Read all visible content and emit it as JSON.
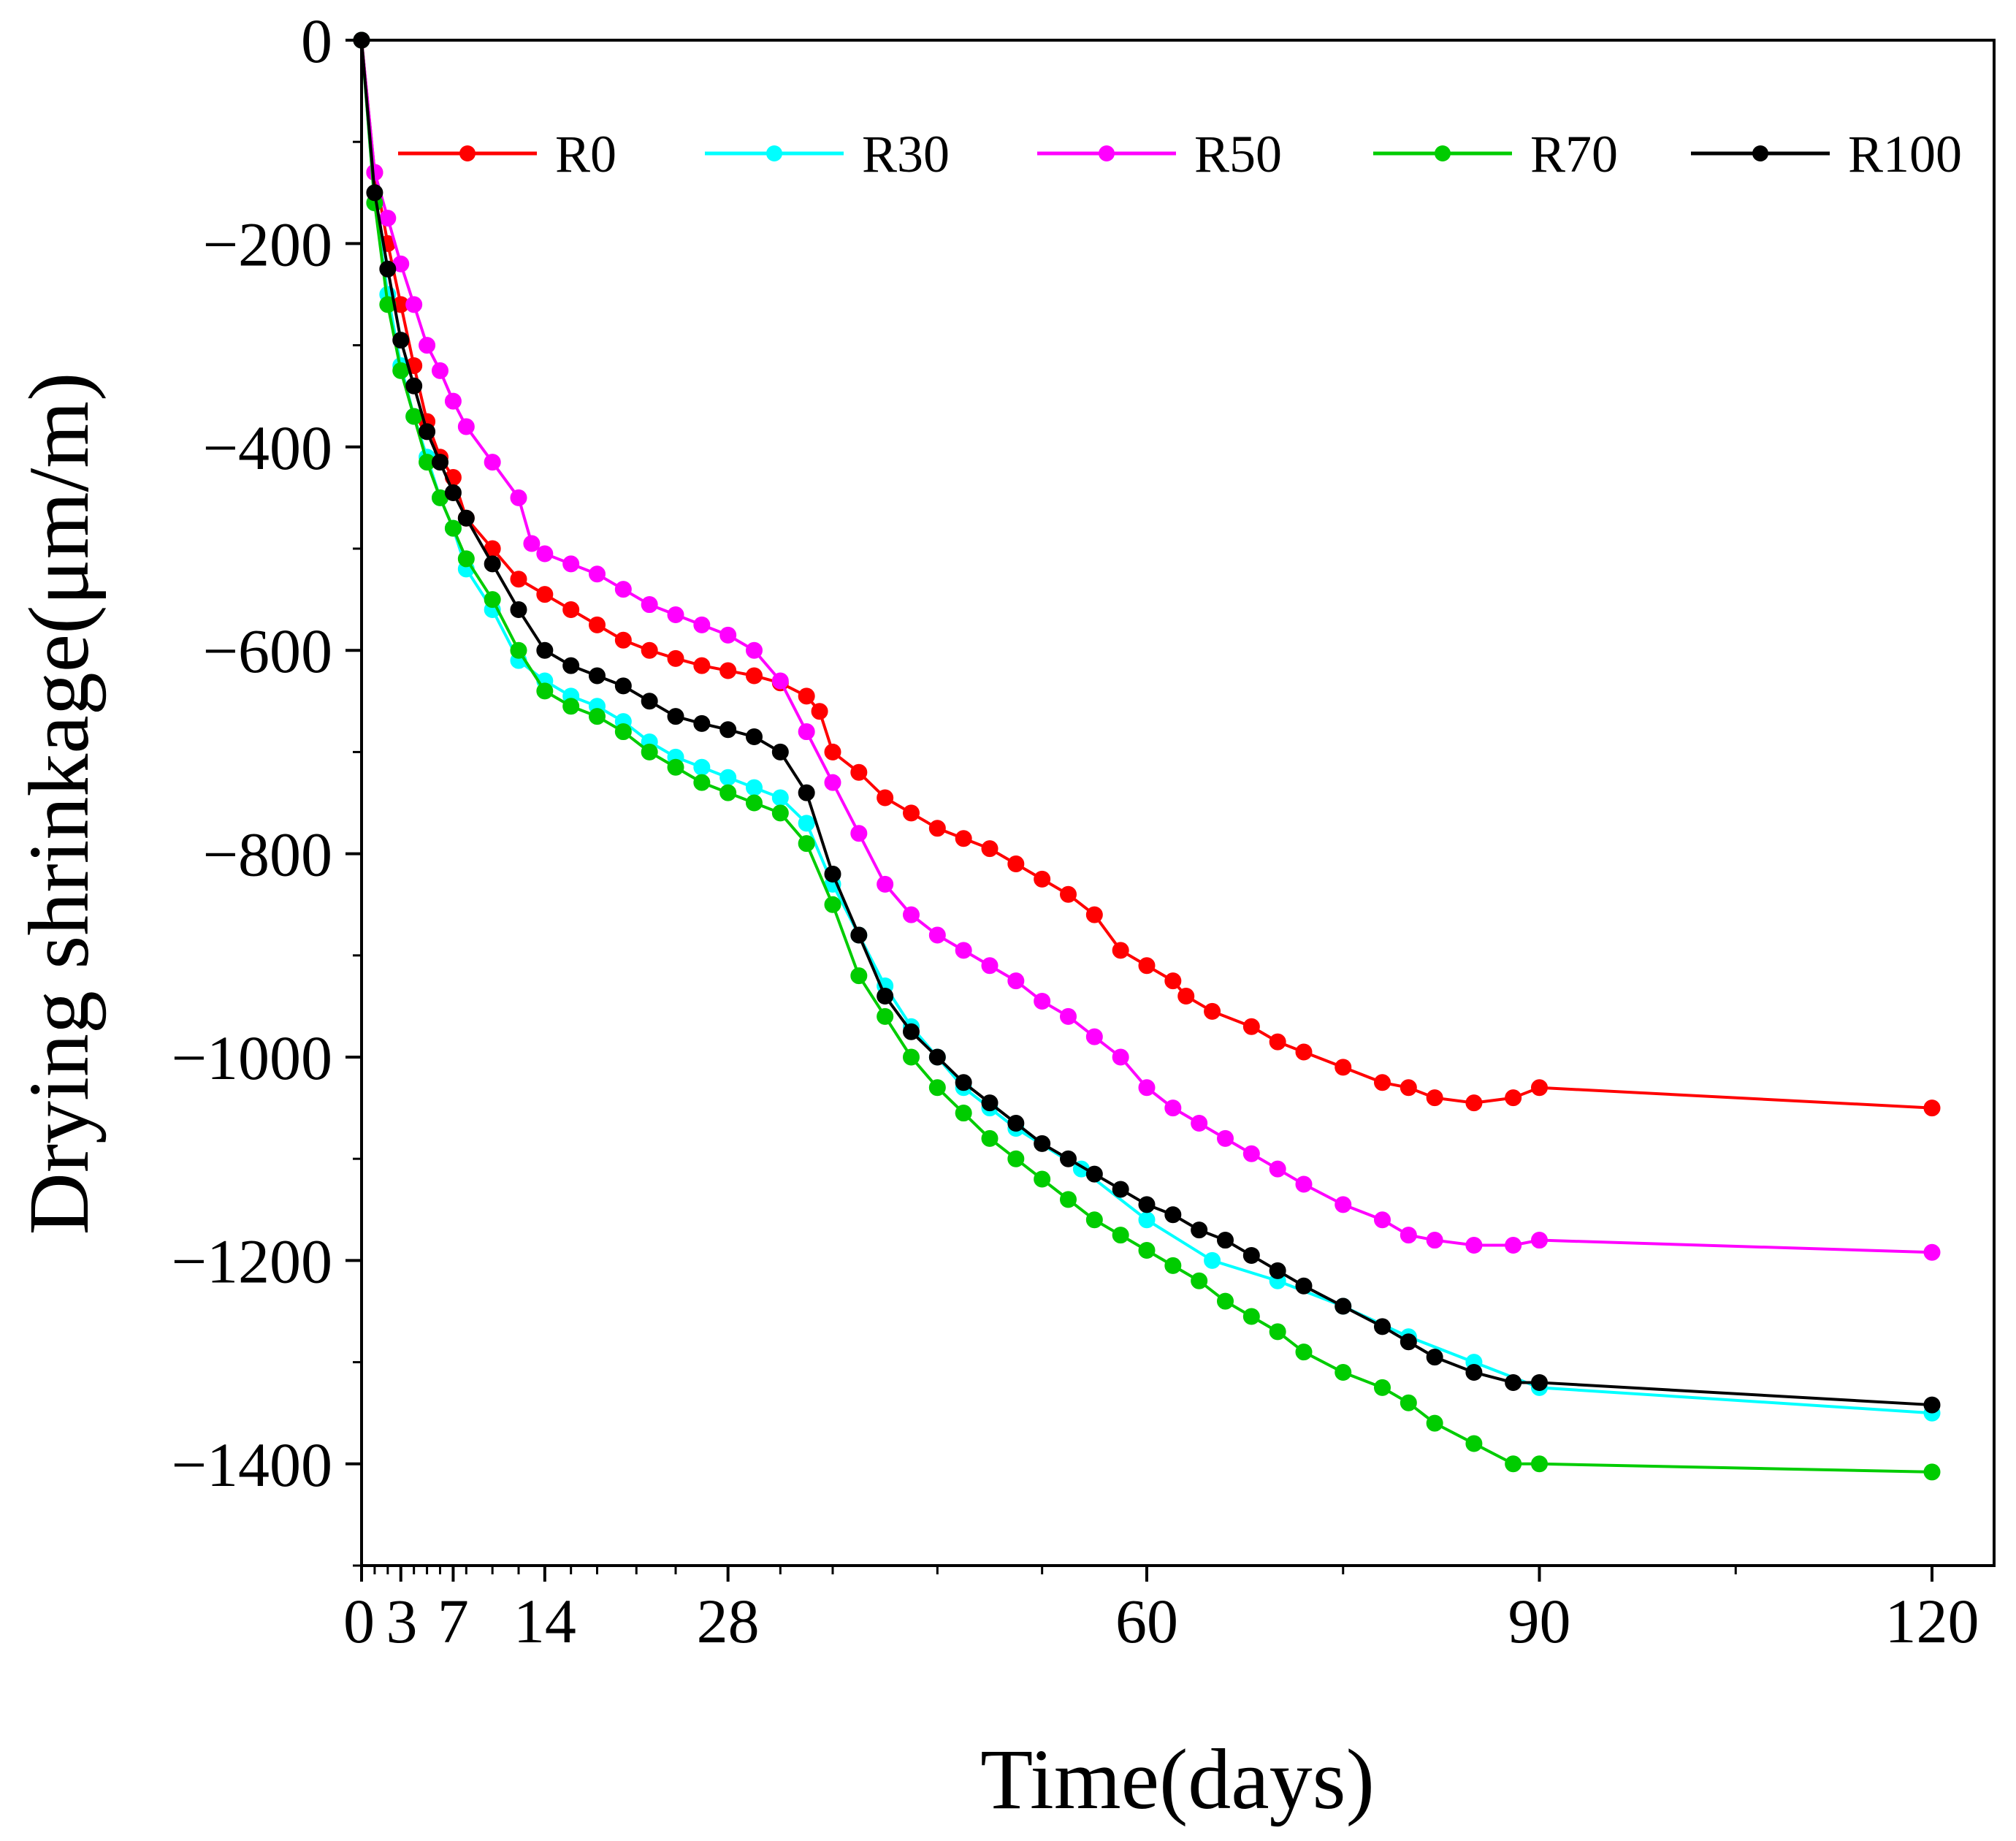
{
  "chart_data": {
    "type": "line",
    "title": "",
    "xlabel": "Time(days)",
    "ylabel": "Drying shrinkage(μm/m)",
    "xlim": [
      0,
      125
    ],
    "ylim": [
      -1500,
      0
    ],
    "x_ticks": [
      0,
      3,
      7,
      14,
      28,
      60,
      90,
      120
    ],
    "y_ticks": [
      0,
      -200,
      -400,
      -600,
      -800,
      -1000,
      -1200,
      -1400
    ],
    "y_tick_labels": [
      "0",
      "−200",
      "−400",
      "−600",
      "−800",
      "−1000",
      "−1200",
      "−1400"
    ],
    "legend_position": "top",
    "grid": false,
    "series": [
      {
        "name": "R0",
        "color": "#ff0000",
        "x": [
          0,
          1,
          2,
          3,
          4,
          5,
          6,
          7,
          8,
          10,
          12,
          14,
          16,
          18,
          20,
          22,
          24,
          26,
          28,
          30,
          32,
          34,
          35,
          36,
          38,
          40,
          42,
          44,
          46,
          48,
          50,
          52,
          54,
          56,
          58,
          60,
          62,
          63,
          65,
          68,
          70,
          72,
          75,
          78,
          80,
          82,
          85,
          88,
          90,
          120
        ],
        "values": [
          0,
          -130,
          -200,
          -260,
          -320,
          -375,
          -410,
          -430,
          -470,
          -500,
          -530,
          -545,
          -560,
          -575,
          -590,
          -600,
          -608,
          -615,
          -620,
          -625,
          -632,
          -645,
          -660,
          -700,
          -720,
          -745,
          -760,
          -775,
          -785,
          -795,
          -810,
          -825,
          -840,
          -860,
          -895,
          -910,
          -925,
          -940,
          -955,
          -970,
          -985,
          -995,
          -1010,
          -1025,
          -1030,
          -1040,
          -1045,
          -1040,
          -1030,
          -1050
        ]
      },
      {
        "name": "R30",
        "color": "#00ffff",
        "x": [
          0,
          1,
          2,
          3,
          4,
          5,
          6,
          7,
          8,
          10,
          12,
          14,
          16,
          18,
          20,
          22,
          24,
          26,
          28,
          30,
          32,
          34,
          36,
          38,
          40,
          42,
          44,
          46,
          48,
          50,
          55,
          60,
          65,
          70,
          75,
          80,
          85,
          90,
          120
        ],
        "values": [
          0,
          -160,
          -250,
          -320,
          -370,
          -410,
          -450,
          -480,
          -520,
          -560,
          -610,
          -630,
          -645,
          -655,
          -670,
          -690,
          -705,
          -715,
          -725,
          -735,
          -745,
          -770,
          -830,
          -880,
          -930,
          -970,
          -1000,
          -1030,
          -1050,
          -1070,
          -1110,
          -1160,
          -1200,
          -1220,
          -1245,
          -1275,
          -1300,
          -1325,
          -1350
        ]
      },
      {
        "name": "R50",
        "color": "#ff00ff",
        "x": [
          0,
          1,
          2,
          3,
          4,
          5,
          6,
          7,
          8,
          10,
          12,
          13,
          14,
          16,
          18,
          20,
          22,
          24,
          26,
          28,
          30,
          32,
          34,
          36,
          38,
          40,
          42,
          44,
          46,
          48,
          50,
          52,
          54,
          56,
          58,
          60,
          62,
          64,
          66,
          68,
          70,
          72,
          75,
          78,
          80,
          82,
          85,
          88,
          90,
          120
        ],
        "values": [
          0,
          -130,
          -175,
          -220,
          -260,
          -300,
          -325,
          -355,
          -380,
          -415,
          -450,
          -495,
          -505,
          -515,
          -525,
          -540,
          -555,
          -565,
          -575,
          -585,
          -600,
          -630,
          -680,
          -730,
          -780,
          -830,
          -860,
          -880,
          -895,
          -910,
          -925,
          -945,
          -960,
          -980,
          -1000,
          -1030,
          -1050,
          -1065,
          -1080,
          -1095,
          -1110,
          -1125,
          -1145,
          -1160,
          -1175,
          -1180,
          -1185,
          -1185,
          -1180,
          -1192
        ]
      },
      {
        "name": "R70",
        "color": "#00cc00",
        "x": [
          0,
          1,
          2,
          3,
          4,
          5,
          6,
          7,
          8,
          10,
          12,
          14,
          16,
          18,
          20,
          22,
          24,
          26,
          28,
          30,
          32,
          34,
          36,
          38,
          40,
          42,
          44,
          46,
          48,
          50,
          52,
          54,
          56,
          58,
          60,
          62,
          64,
          66,
          68,
          70,
          72,
          75,
          78,
          80,
          82,
          85,
          88,
          90,
          120
        ],
        "values": [
          0,
          -160,
          -260,
          -325,
          -370,
          -415,
          -450,
          -480,
          -510,
          -550,
          -600,
          -640,
          -655,
          -665,
          -680,
          -700,
          -715,
          -730,
          -740,
          -750,
          -760,
          -790,
          -850,
          -920,
          -960,
          -1000,
          -1030,
          -1055,
          -1080,
          -1100,
          -1120,
          -1140,
          -1160,
          -1175,
          -1190,
          -1205,
          -1220,
          -1240,
          -1255,
          -1270,
          -1290,
          -1310,
          -1325,
          -1340,
          -1360,
          -1380,
          -1400,
          -1400,
          -1408
        ]
      },
      {
        "name": "R100",
        "color": "#000000",
        "x": [
          0,
          1,
          2,
          3,
          4,
          5,
          6,
          7,
          8,
          10,
          12,
          14,
          16,
          18,
          20,
          22,
          24,
          26,
          28,
          30,
          32,
          34,
          36,
          38,
          40,
          42,
          44,
          46,
          48,
          50,
          52,
          54,
          56,
          58,
          60,
          62,
          64,
          66,
          68,
          70,
          72,
          75,
          78,
          80,
          82,
          85,
          88,
          90,
          120
        ],
        "values": [
          0,
          -150,
          -225,
          -295,
          -340,
          -385,
          -415,
          -445,
          -470,
          -515,
          -560,
          -600,
          -615,
          -625,
          -635,
          -650,
          -665,
          -672,
          -678,
          -685,
          -700,
          -740,
          -820,
          -880,
          -940,
          -975,
          -1000,
          -1025,
          -1045,
          -1065,
          -1085,
          -1100,
          -1115,
          -1130,
          -1145,
          -1155,
          -1170,
          -1180,
          -1195,
          -1210,
          -1225,
          -1245,
          -1265,
          -1280,
          -1295,
          -1310,
          -1320,
          -1320,
          -1342
        ]
      }
    ]
  }
}
